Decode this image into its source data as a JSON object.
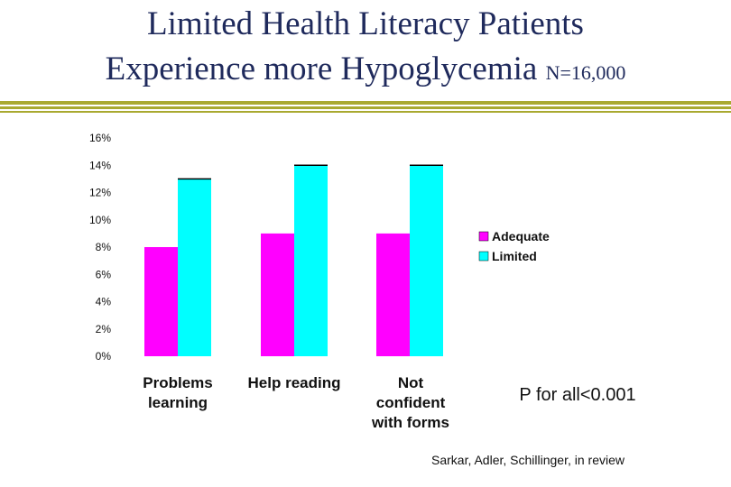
{
  "slide": {
    "title_line1": "Limited Health Literacy Patients",
    "title_line2": "Experience more Hypoglycemia",
    "title_note": "N=16,000",
    "p_value": "P for all<0.001",
    "source": "Sarkar, Adler, Schillinger, in review"
  },
  "colors": {
    "title": "#1f2a5c",
    "rule": "#a9a930"
  },
  "chart_data": {
    "type": "bar",
    "categories": [
      [
        "Problems",
        "learning"
      ],
      [
        "Help reading"
      ],
      [
        "Not",
        "confident",
        "with forms"
      ]
    ],
    "series": [
      {
        "name": "Adequate",
        "color": "#ff00ff",
        "values": [
          8,
          9,
          9
        ]
      },
      {
        "name": "Limited",
        "color": "#00ffff",
        "values": [
          13,
          14,
          14
        ]
      }
    ],
    "ylim": [
      0,
      16
    ],
    "yticks": [
      "0%",
      "2%",
      "4%",
      "6%",
      "8%",
      "10%",
      "12%",
      "14%",
      "16%"
    ],
    "title": "",
    "xlabel": "",
    "ylabel": "",
    "legend": "right",
    "grid": false
  }
}
